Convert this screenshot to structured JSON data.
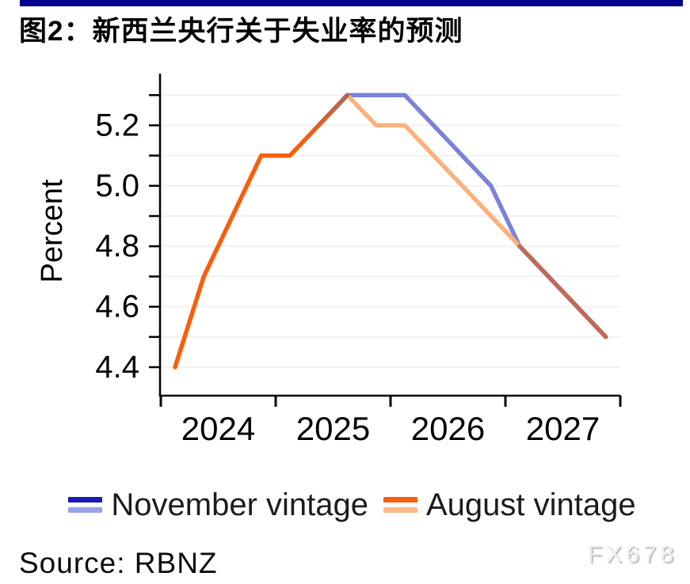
{
  "page": {
    "title": "图2：新西兰央行关于失业率的预测",
    "source": "Source: RBNZ",
    "watermark": "FX678",
    "accent_bar_color": "#00008B"
  },
  "chart_data": {
    "type": "line",
    "title": "图2：新西兰央行关于失业率的预测",
    "xlabel": "",
    "ylabel": "Percent",
    "ylim": [
      4.3,
      5.35
    ],
    "grid": {
      "min": 4.4,
      "max": 5.3,
      "step": 0.1,
      "on": true
    },
    "categories": [
      "2024Q1",
      "2024Q2",
      "2024Q3",
      "2024Q4",
      "2025Q1",
      "2025Q2",
      "2025Q3",
      "2025Q4",
      "2026Q1",
      "2026Q2",
      "2026Q3",
      "2026Q4",
      "2027Q1",
      "2027Q2",
      "2027Q3",
      "2027Q4"
    ],
    "x_tick_labels": [
      "2024",
      "2025",
      "2026",
      "2027"
    ],
    "y_tick_labels": [
      "5.2",
      "5.0",
      "4.8",
      "4.6",
      "4.4"
    ],
    "legend_position": "bottom",
    "series": [
      {
        "name": "November vintage",
        "line_color_forecast": "#7b82d8",
        "legend_marker": [
          "#1a1ab2",
          "#97a3e8"
        ],
        "forecast_from": 5,
        "values": [
          null,
          null,
          null,
          null,
          null,
          5.2,
          5.3,
          5.3,
          5.3,
          5.2,
          5.1,
          5.0,
          4.8,
          4.7,
          4.6,
          4.5
        ]
      },
      {
        "name": "August vintage",
        "line_color_history": "#f75f0e",
        "line_color_forecast": "#fcb17c",
        "legend_marker": [
          "#f75f0e",
          "#fcb988"
        ],
        "forecast_from": 6,
        "values": [
          4.4,
          4.7,
          4.9,
          5.1,
          5.1,
          5.2,
          5.3,
          5.2,
          5.2,
          5.1,
          5.0,
          4.9,
          4.8,
          4.7,
          4.6,
          4.5
        ]
      }
    ],
    "overlap_color_tail": "#bf6a5a",
    "overlap_color_pre_peak": "#aa6950"
  }
}
